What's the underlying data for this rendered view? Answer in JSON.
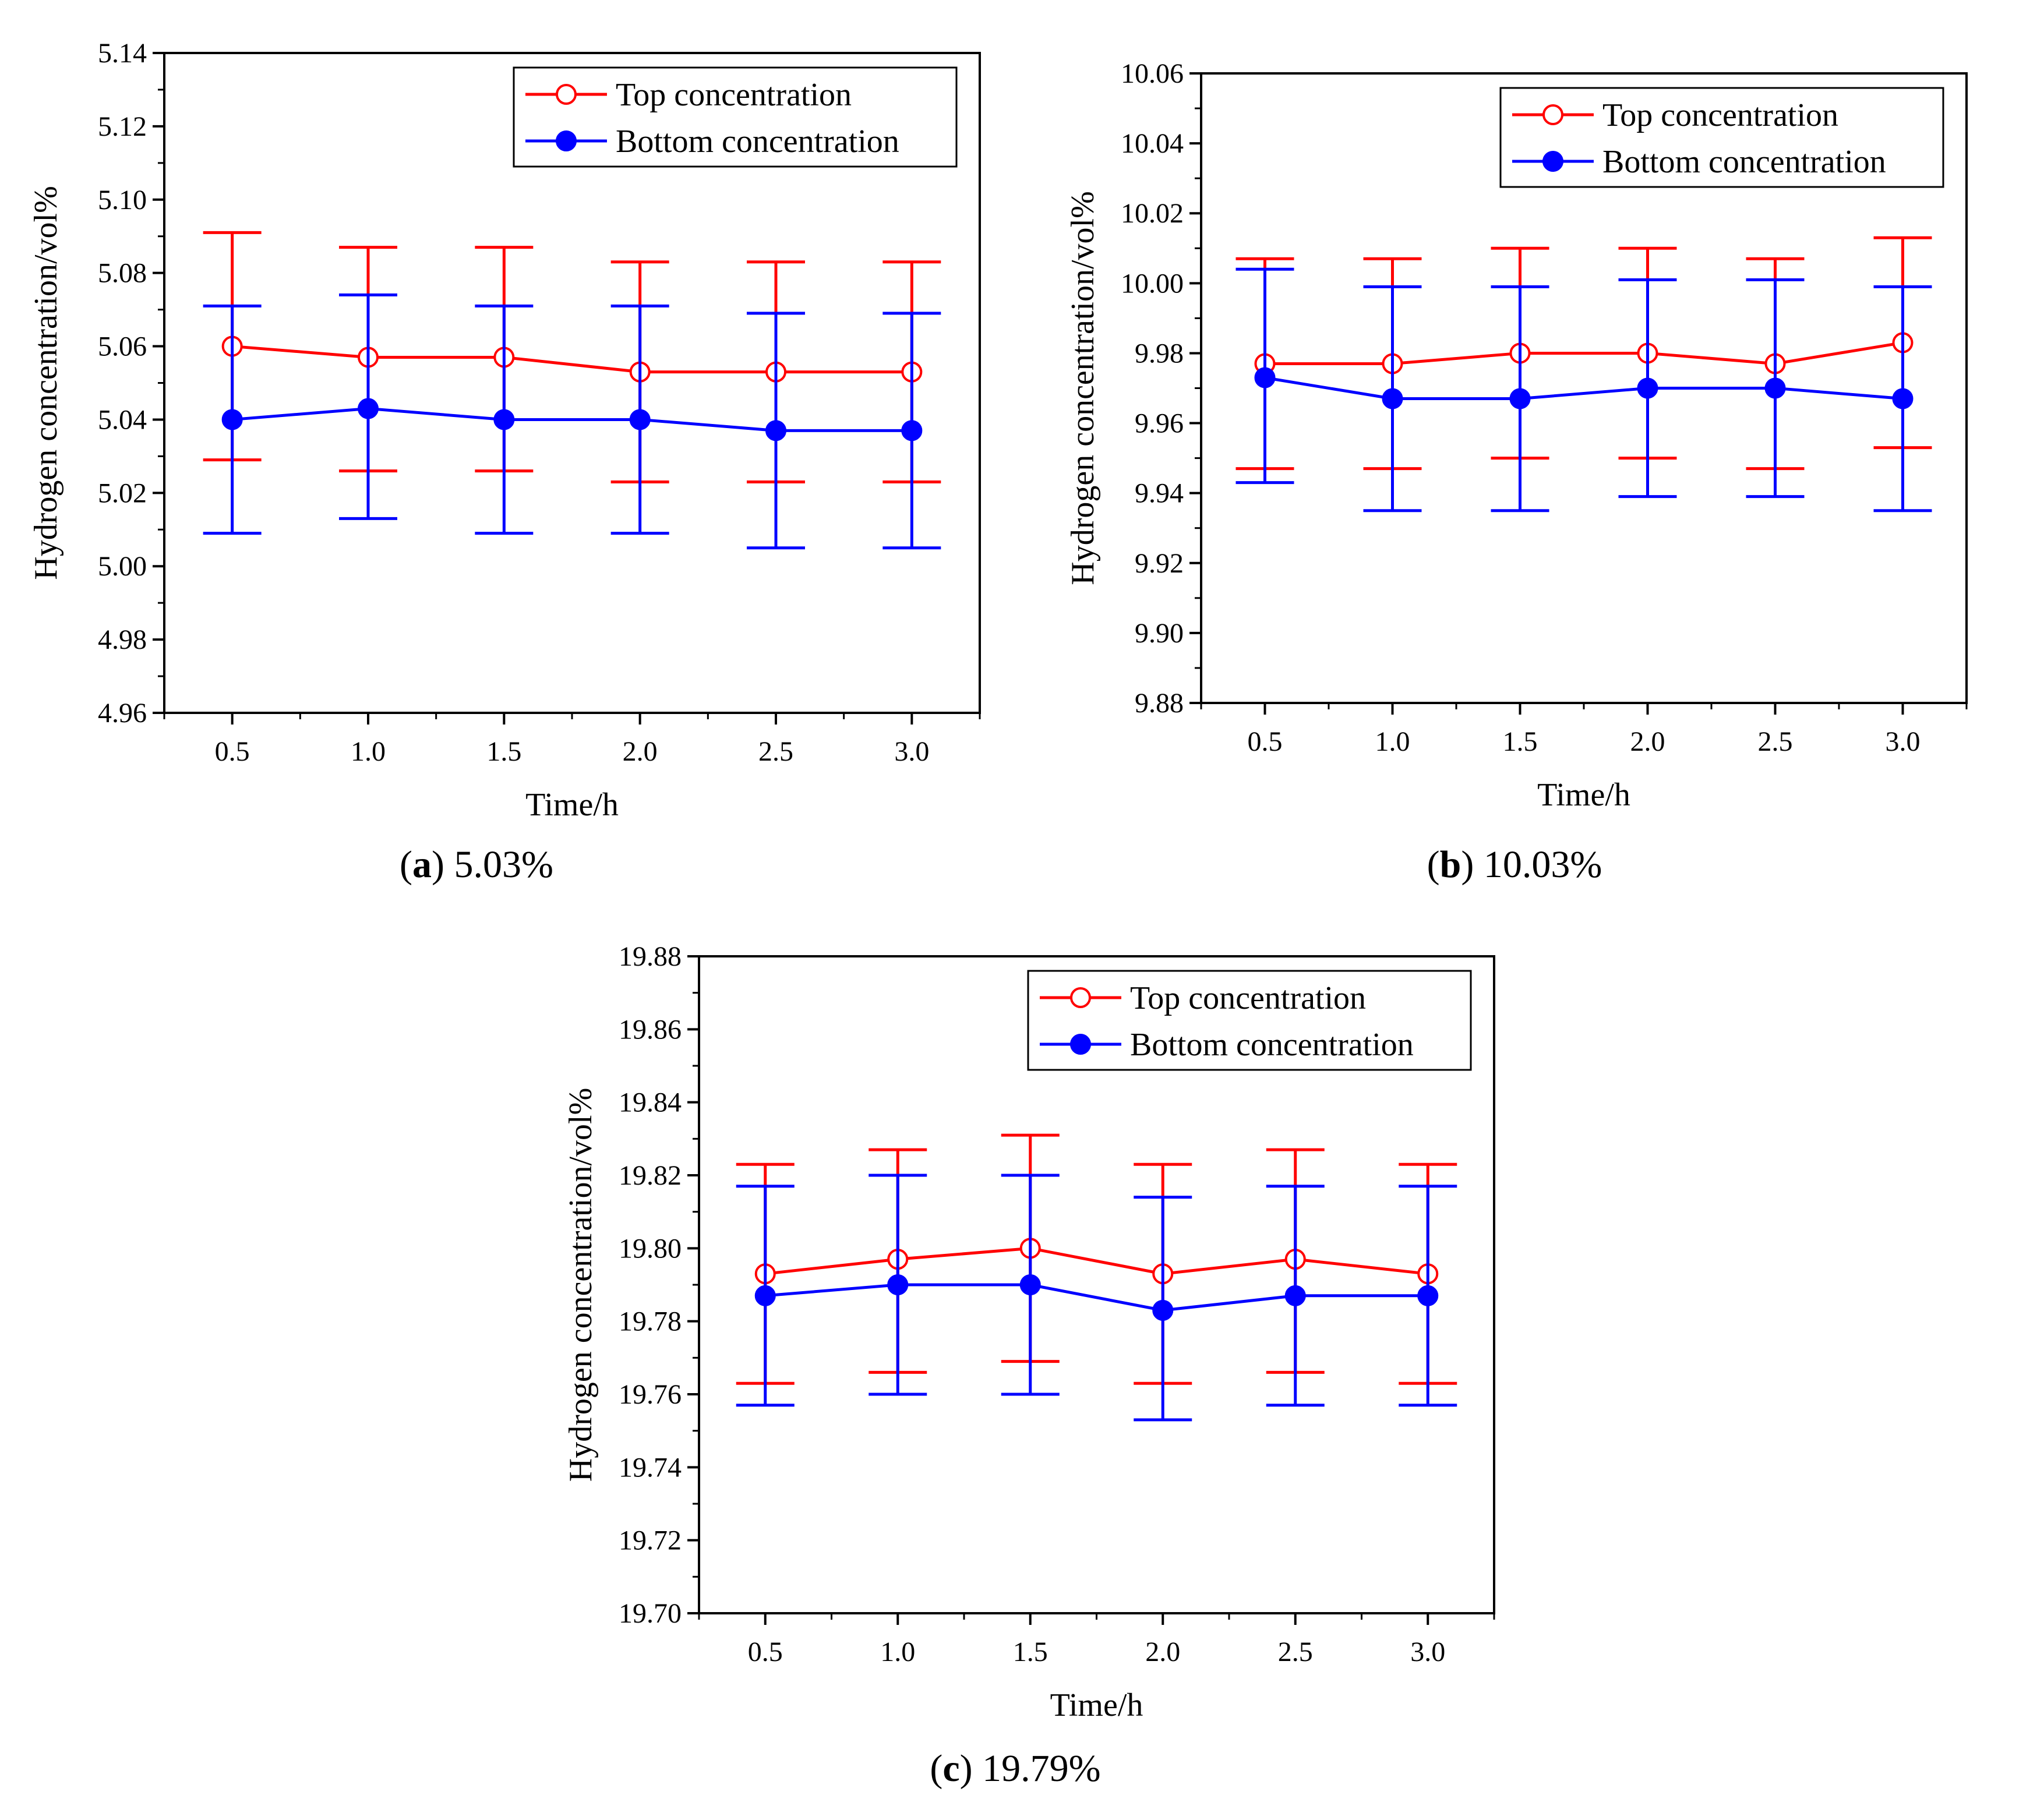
{
  "chart_data": [
    {
      "type": "line",
      "error_bars": true,
      "caption_letter": "a",
      "caption_text": "5.03%",
      "xlabel": "Time/h",
      "ylabel": "Hydrogen concentration/vol%",
      "x": [
        0.5,
        1.0,
        1.5,
        2.0,
        2.5,
        3.0
      ],
      "x_tick_labels": [
        "0.5",
        "1.0",
        "1.5",
        "2.0",
        "2.5",
        "3.0"
      ],
      "xlim": [
        0.25,
        3.25
      ],
      "ylim": [
        4.96,
        5.14
      ],
      "y_ticks": [
        4.96,
        4.98,
        5.0,
        5.02,
        5.04,
        5.06,
        5.08,
        5.1,
        5.12,
        5.14
      ],
      "y_tick_labels": [
        "4.96",
        "4.98",
        "5.00",
        "5.02",
        "5.04",
        "5.06",
        "5.08",
        "5.10",
        "5.12",
        "5.14"
      ],
      "grid": false,
      "legend_position": "top-right",
      "series": [
        {
          "name": "Top concentration",
          "color": "#ff0000",
          "marker": "open-circle",
          "values": [
            5.06,
            5.057,
            5.057,
            5.053,
            5.053,
            5.053
          ],
          "err_low": [
            5.029,
            5.026,
            5.026,
            5.023,
            5.023,
            5.023
          ],
          "err_high": [
            5.091,
            5.087,
            5.087,
            5.083,
            5.083,
            5.083
          ]
        },
        {
          "name": "Bottom concentration",
          "color": "#0000ff",
          "marker": "filled-circle",
          "values": [
            5.04,
            5.043,
            5.04,
            5.04,
            5.037,
            5.037
          ],
          "err_low": [
            5.009,
            5.013,
            5.009,
            5.009,
            5.005,
            5.005
          ],
          "err_high": [
            5.071,
            5.074,
            5.071,
            5.071,
            5.069,
            5.069
          ]
        }
      ]
    },
    {
      "type": "line",
      "error_bars": true,
      "caption_letter": "b",
      "caption_text": "10.03%",
      "xlabel": "Time/h",
      "ylabel": "Hydrogen concentration/vol%",
      "x": [
        0.5,
        1.0,
        1.5,
        2.0,
        2.5,
        3.0
      ],
      "x_tick_labels": [
        "0.5",
        "1.0",
        "1.5",
        "2.0",
        "2.5",
        "3.0"
      ],
      "xlim": [
        0.25,
        3.25
      ],
      "ylim": [
        9.88,
        10.06
      ],
      "y_ticks": [
        9.88,
        9.9,
        9.92,
        9.94,
        9.96,
        9.98,
        10.0,
        10.02,
        10.04,
        10.06
      ],
      "y_tick_labels": [
        "9.88",
        "9.90",
        "9.92",
        "9.94",
        "9.96",
        "9.98",
        "10.00",
        "10.02",
        "10.04",
        "10.06"
      ],
      "grid": false,
      "legend_position": "top-right",
      "series": [
        {
          "name": "Top concentration",
          "color": "#ff0000",
          "marker": "open-circle",
          "values": [
            9.977,
            9.977,
            9.98,
            9.98,
            9.977,
            9.983
          ],
          "err_low": [
            9.947,
            9.947,
            9.95,
            9.95,
            9.947,
            9.953
          ],
          "err_high": [
            10.007,
            10.007,
            10.01,
            10.01,
            10.007,
            10.013
          ]
        },
        {
          "name": "Bottom concentration",
          "color": "#0000ff",
          "marker": "filled-circle",
          "values": [
            9.973,
            9.967,
            9.967,
            9.97,
            9.97,
            9.967
          ],
          "err_low": [
            9.943,
            9.935,
            9.935,
            9.939,
            9.939,
            9.935
          ],
          "err_high": [
            10.004,
            9.999,
            9.999,
            10.001,
            10.001,
            9.999
          ]
        }
      ]
    },
    {
      "type": "line",
      "error_bars": true,
      "caption_letter": "c",
      "caption_text": "19.79%",
      "xlabel": "Time/h",
      "ylabel": "Hydrogen concentration/vol%",
      "x": [
        0.5,
        1.0,
        1.5,
        2.0,
        2.5,
        3.0
      ],
      "x_tick_labels": [
        "0.5",
        "1.0",
        "1.5",
        "2.0",
        "2.5",
        "3.0"
      ],
      "xlim": [
        0.25,
        3.25
      ],
      "ylim": [
        19.7,
        19.88
      ],
      "y_ticks": [
        19.7,
        19.72,
        19.74,
        19.76,
        19.78,
        19.8,
        19.82,
        19.84,
        19.86,
        19.88
      ],
      "y_tick_labels": [
        "19.70",
        "19.72",
        "19.74",
        "19.76",
        "19.78",
        "19.80",
        "19.82",
        "19.84",
        "19.86",
        "19.88"
      ],
      "grid": false,
      "legend_position": "top-right",
      "series": [
        {
          "name": "Top concentration",
          "color": "#ff0000",
          "marker": "open-circle",
          "values": [
            19.793,
            19.797,
            19.8,
            19.793,
            19.797,
            19.793
          ],
          "err_low": [
            19.763,
            19.766,
            19.769,
            19.763,
            19.766,
            19.763
          ],
          "err_high": [
            19.823,
            19.827,
            19.831,
            19.823,
            19.827,
            19.823
          ]
        },
        {
          "name": "Bottom concentration",
          "color": "#0000ff",
          "marker": "filled-circle",
          "values": [
            19.787,
            19.79,
            19.79,
            19.783,
            19.787,
            19.787
          ],
          "err_low": [
            19.757,
            19.76,
            19.76,
            19.753,
            19.757,
            19.757
          ],
          "err_high": [
            19.817,
            19.82,
            19.82,
            19.814,
            19.817,
            19.817
          ]
        }
      ]
    }
  ]
}
